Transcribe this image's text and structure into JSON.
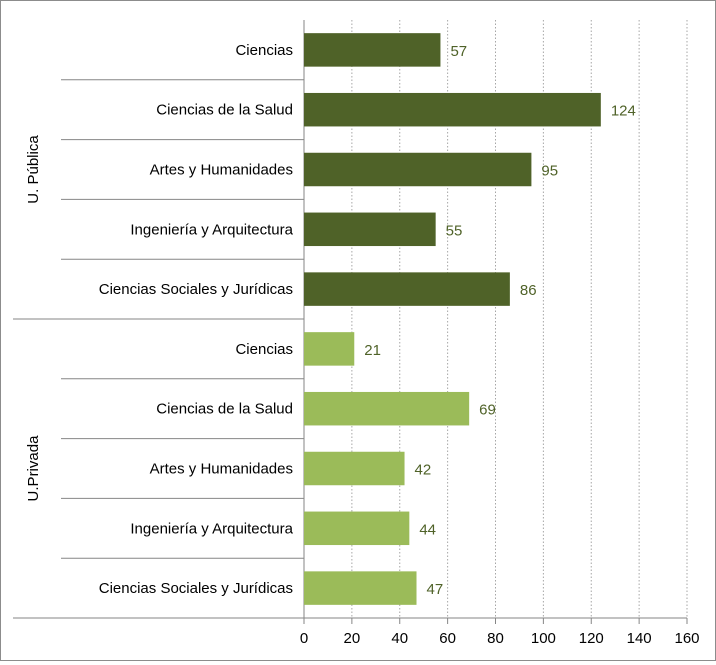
{
  "chart_data": {
    "type": "bar",
    "orientation": "horizontal",
    "title": "",
    "xlabel": "",
    "ylabel": "",
    "xlim": [
      0,
      160
    ],
    "x_ticks": [
      0,
      20,
      40,
      60,
      80,
      100,
      120,
      140,
      160
    ],
    "grid": "vertical dotted",
    "legend": "none",
    "groups": [
      {
        "name": "U. Pública",
        "color": "#4f6228",
        "label_color": "#4f6228",
        "categories": [
          "Ciencias",
          "Ciencias de la Salud",
          "Artes y Humanidades",
          "Ingeniería y Arquitectura",
          "Ciencias Sociales y Jurídicas"
        ],
        "values": [
          57,
          124,
          95,
          55,
          86
        ]
      },
      {
        "name": "U.Privada",
        "color": "#9bbb59",
        "label_color": "#4f6228",
        "categories": [
          "Ciencias",
          "Ciencias de la Salud",
          "Artes y Humanidades",
          "Ingeniería y Arquitectura",
          "Ciencias Sociales y Jurídicas"
        ],
        "values": [
          21,
          69,
          42,
          44,
          47
        ]
      }
    ]
  }
}
